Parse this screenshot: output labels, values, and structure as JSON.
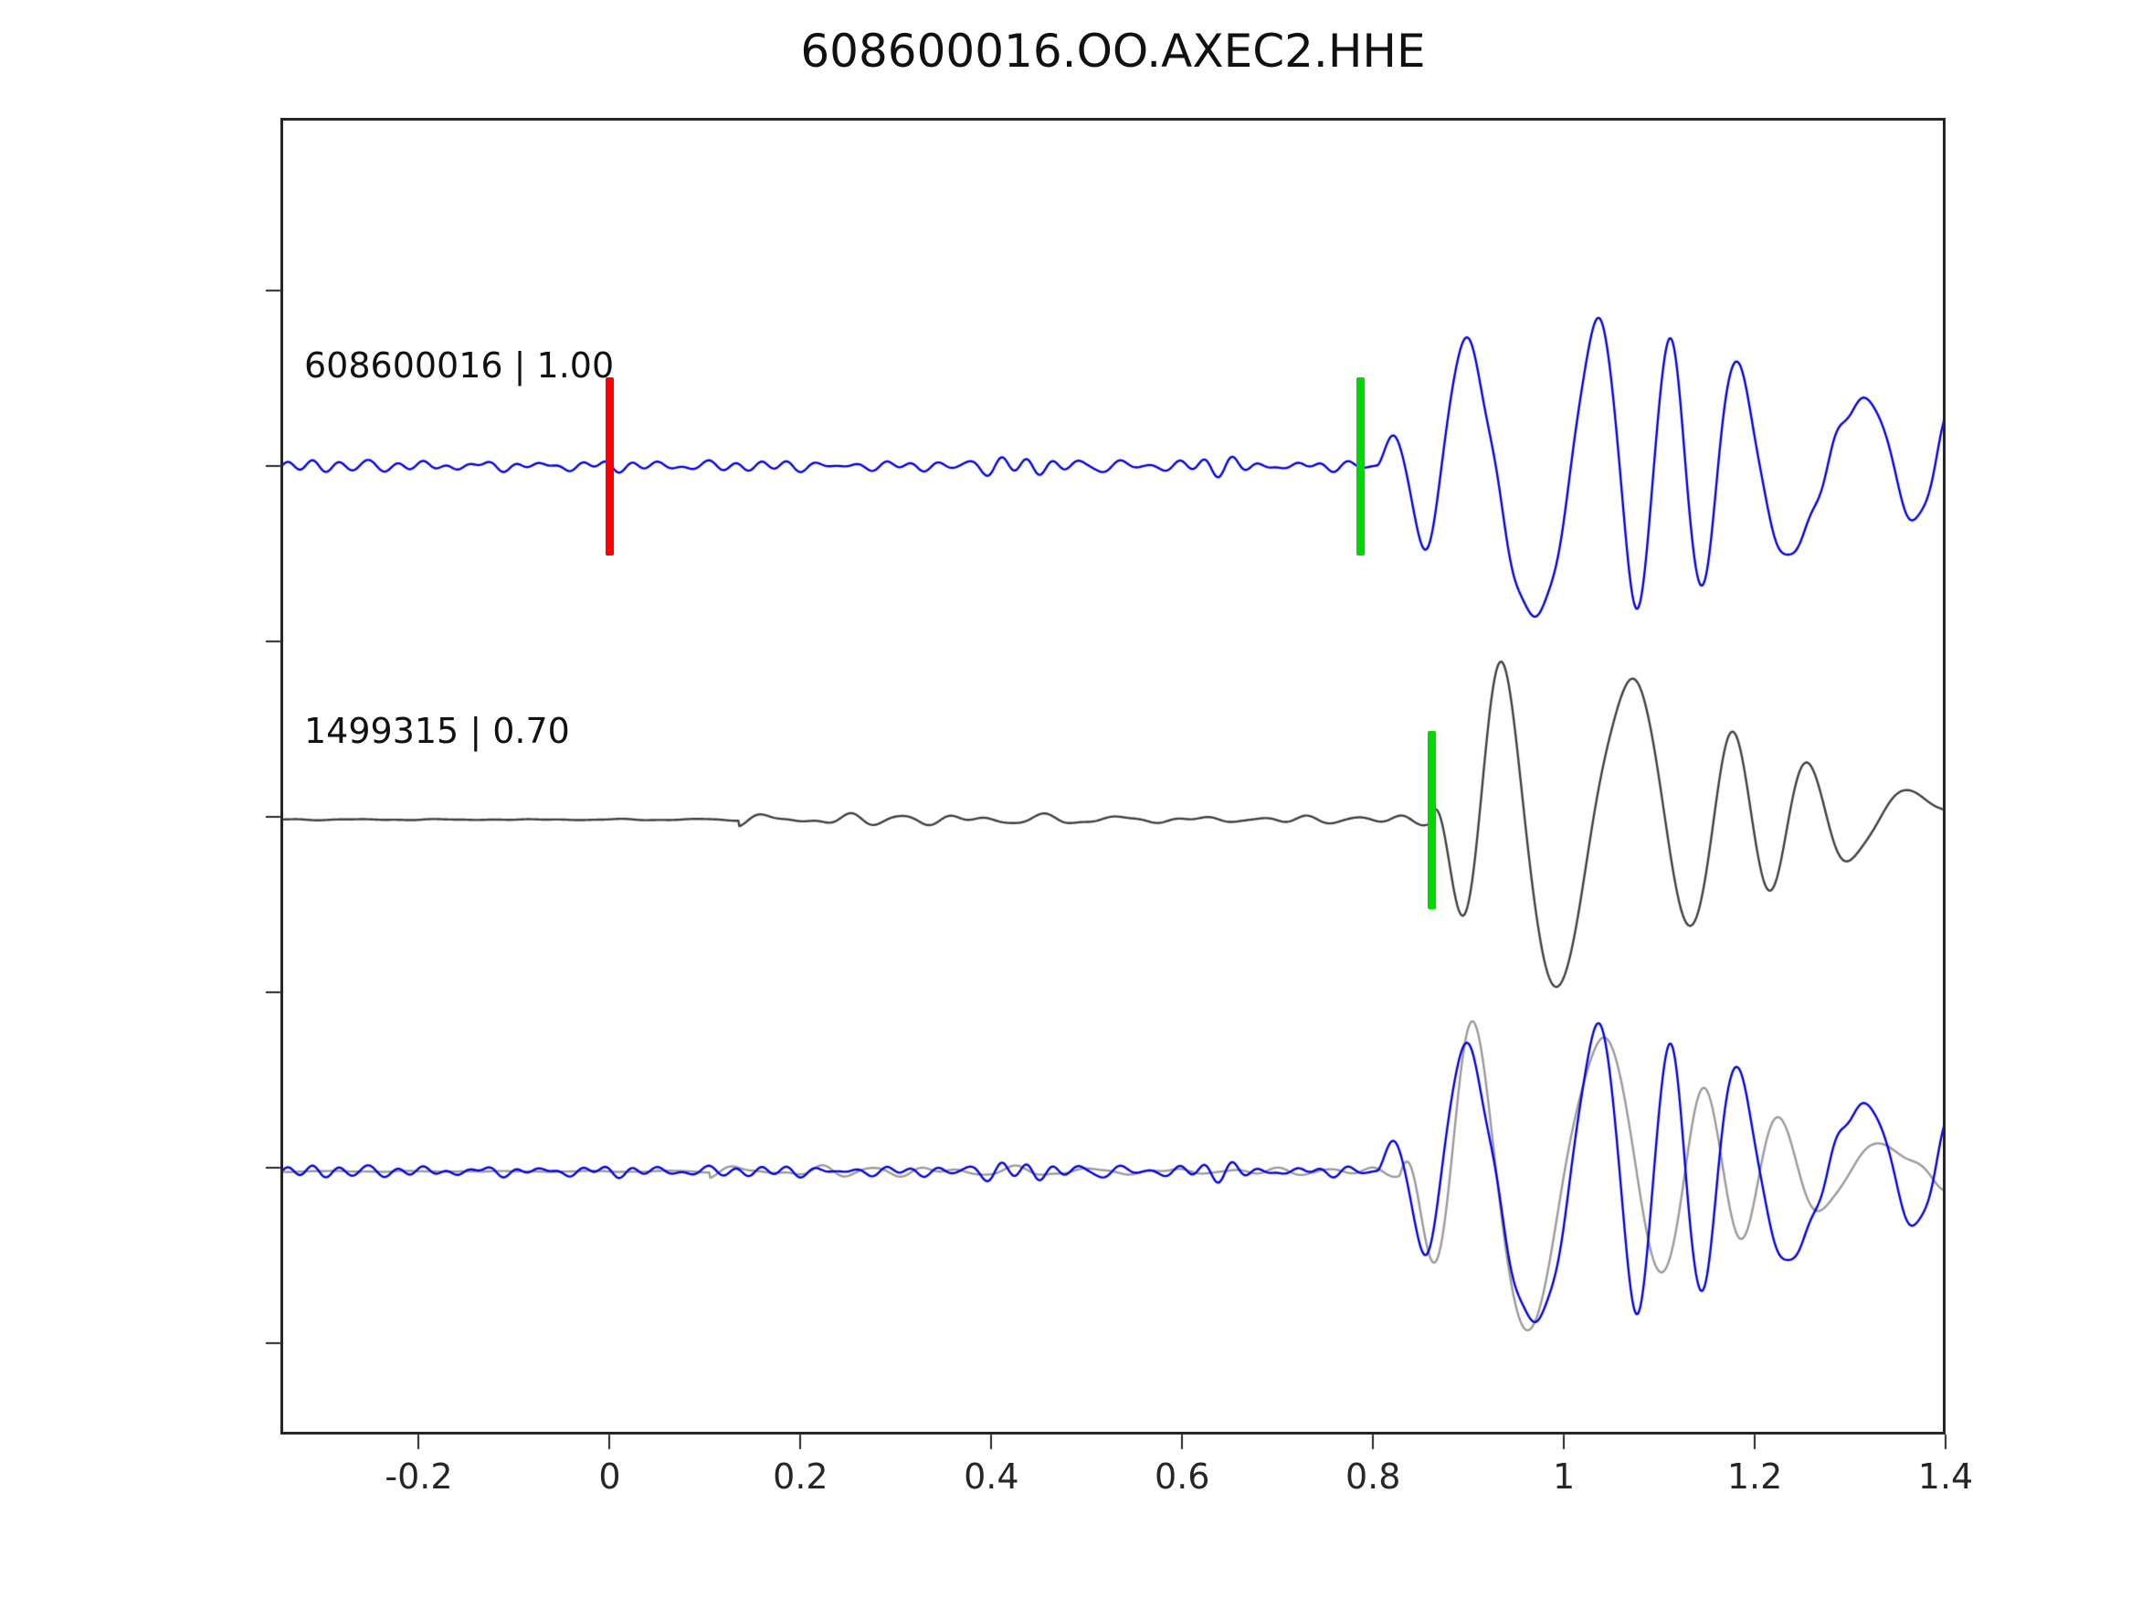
{
  "chart_data": {
    "type": "line",
    "title": "608600016.OO.AXEC2.HHE",
    "xlabel": "",
    "ylabel": "",
    "grid": false,
    "legend": "none",
    "xlim": [
      -0.345,
      1.4
    ],
    "xticks": [
      {
        "value": -0.2,
        "label": "-0.2"
      },
      {
        "value": 0,
        "label": "0"
      },
      {
        "value": 0.2,
        "label": "0.2"
      },
      {
        "value": 0.4,
        "label": "0.4"
      },
      {
        "value": 0.6,
        "label": "0.6"
      },
      {
        "value": 0.8,
        "label": "0.8"
      },
      {
        "value": 1,
        "label": "1"
      },
      {
        "value": 1.2,
        "label": "1.2"
      },
      {
        "value": 1.4,
        "label": "1.4"
      }
    ],
    "trace_labels": [
      {
        "text": "608600016 | 1.00",
        "id": "608600016",
        "correlation": "1.00"
      },
      {
        "text": "1499315 | 0.70",
        "id": "1499315",
        "correlation": "0.70"
      }
    ],
    "markers": [
      {
        "name": "template-pick-marker-red",
        "color": "#ff0000",
        "x": 0.0,
        "row": 0
      },
      {
        "name": "pick-marker-green-template",
        "color": "#00d900",
        "x": 0.786,
        "row": 0
      },
      {
        "name": "pick-marker-green-detection",
        "color": "#00d900",
        "x": 0.861,
        "row": 1
      }
    ],
    "rows": 3,
    "synthesis_note": "Seismogram sample values are not readable at pixel precision; each trace is reconstructed parametrically from its visible noise level, onset time, envelope and dominant frequency.",
    "series": [
      {
        "name": "template-waveform",
        "color": "#0000e6",
        "row": 0,
        "scale": 1,
        "synth": {
          "seed": 42,
          "ncomp": 10,
          "nf0": 16,
          "nf1": 50,
          "quiet_until": -9,
          "quiet_amp": 0,
          "noise_amp": 8,
          "burst_center": 0.32,
          "burst_width": 0.22,
          "burst_gain": 0.4,
          "t0": 0.805,
          "tau": 0.18,
          "A": 165,
          "f": 10.5,
          "fm": 3.2,
          "m": 1.5,
          "phase": 0.4
        }
      },
      {
        "name": "detection-waveform",
        "color": "#3f3f3f",
        "row": 1,
        "scale": 1,
        "synth": {
          "seed": 77,
          "ncomp": 9,
          "nf0": 10,
          "nf1": 32,
          "quiet_until": 0.135,
          "quiet_amp": 1.4,
          "noise_amp": 6.5,
          "burst_center": 0.26,
          "burst_width": 0.16,
          "burst_gain": 0.7,
          "t0": 0.858,
          "tau": 0.12,
          "A": 185,
          "f": 9.5,
          "fm": 2.8,
          "m": 1.3,
          "phase": 2.1
        }
      },
      {
        "name": "overlay-detection-waveform",
        "color": "#9a9a9a",
        "row": 2,
        "scale": 0.95,
        "shift": 0.03,
        "synth": {
          "seed": 77,
          "ncomp": 9,
          "nf0": 10,
          "nf1": 32,
          "quiet_until": 0.135,
          "quiet_amp": 1.4,
          "noise_amp": 6.5,
          "burst_center": 0.26,
          "burst_width": 0.16,
          "burst_gain": 0.7,
          "t0": 0.858,
          "tau": 0.12,
          "A": 185,
          "f": 9.5,
          "fm": 2.8,
          "m": 1.3,
          "phase": 2.1
        }
      },
      {
        "name": "overlay-template-waveform",
        "color": "#0000e6",
        "row": 2,
        "scale": 1,
        "synth": {
          "seed": 42,
          "ncomp": 10,
          "nf0": 16,
          "nf1": 50,
          "quiet_until": -9,
          "quiet_amp": 0,
          "noise_amp": 8,
          "burst_center": 0.32,
          "burst_width": 0.22,
          "burst_gain": 0.4,
          "t0": 0.805,
          "tau": 0.18,
          "A": 165,
          "f": 10.5,
          "fm": 3.2,
          "m": 1.5,
          "phase": 0.4
        }
      }
    ]
  }
}
